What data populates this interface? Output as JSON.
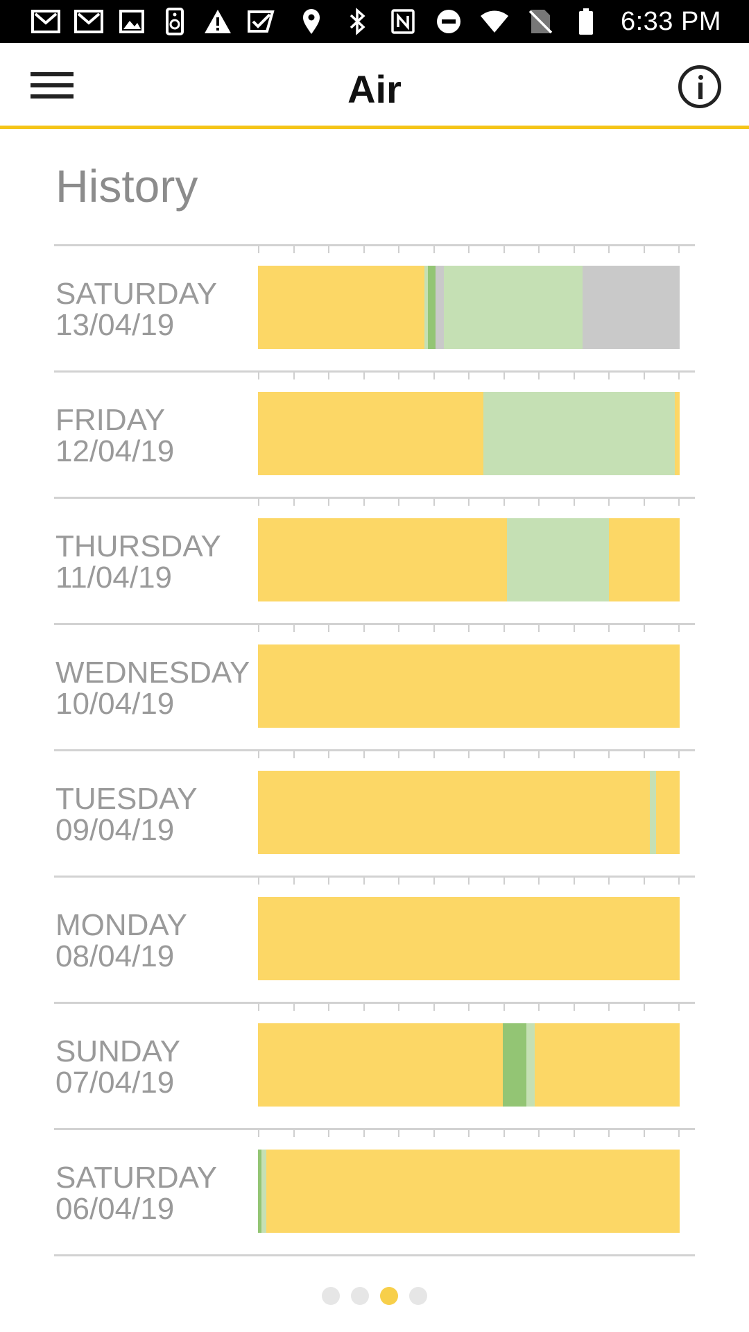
{
  "status_bar": {
    "time": "6:33 PM",
    "left_icons": [
      "gmail-icon",
      "gmail-icon",
      "image-icon",
      "speaker-icon",
      "warning-icon",
      "check-icon"
    ],
    "right_icons": [
      "location-icon",
      "bluetooth-icon",
      "nfc-icon",
      "do-not-disturb-icon",
      "wifi-icon",
      "no-sim-icon",
      "battery-icon"
    ]
  },
  "app_bar": {
    "title": "Air",
    "menu_icon": "hamburger-menu-icon",
    "info_icon": "info-icon"
  },
  "history": {
    "title": "History",
    "colors": {
      "yellow": "#FCD766",
      "light_green": "#C5E0B4",
      "green": "#93C574",
      "gray": "#C9C9C9",
      "grid": "#D2D2D2",
      "accent": "#F5C518"
    },
    "days": [
      {
        "day": "SATURDAY",
        "date": "13/04/19",
        "segments": [
          {
            "color": "yellow",
            "fraction": 0.395
          },
          {
            "color": "light_green",
            "fraction": 0.008
          },
          {
            "color": "green",
            "fraction": 0.018
          },
          {
            "color": "gray",
            "fraction": 0.019
          },
          {
            "color": "light_green",
            "fraction": 0.33
          },
          {
            "color": "gray",
            "fraction": 0.23
          }
        ]
      },
      {
        "day": "FRIDAY",
        "date": "12/04/19",
        "segments": [
          {
            "color": "yellow",
            "fraction": 0.535
          },
          {
            "color": "light_green",
            "fraction": 0.453
          },
          {
            "color": "yellow",
            "fraction": 0.012
          }
        ]
      },
      {
        "day": "THURSDAY",
        "date": "11/04/19",
        "segments": [
          {
            "color": "yellow",
            "fraction": 0.59
          },
          {
            "color": "light_green",
            "fraction": 0.242
          },
          {
            "color": "yellow",
            "fraction": 0.168
          }
        ]
      },
      {
        "day": "WEDNESDAY",
        "date": "10/04/19",
        "segments": [
          {
            "color": "yellow",
            "fraction": 1.0
          }
        ]
      },
      {
        "day": "TUESDAY",
        "date": "09/04/19",
        "segments": [
          {
            "color": "yellow",
            "fraction": 0.93
          },
          {
            "color": "light_green",
            "fraction": 0.014
          },
          {
            "color": "yellow",
            "fraction": 0.056
          }
        ]
      },
      {
        "day": "MONDAY",
        "date": "08/04/19",
        "segments": [
          {
            "color": "yellow",
            "fraction": 1.0
          }
        ]
      },
      {
        "day": "SUNDAY",
        "date": "07/04/19",
        "segments": [
          {
            "color": "yellow",
            "fraction": 0.58
          },
          {
            "color": "green",
            "fraction": 0.057
          },
          {
            "color": "light_green",
            "fraction": 0.02
          },
          {
            "color": "yellow",
            "fraction": 0.343
          }
        ]
      },
      {
        "day": "SATURDAY",
        "date": "06/04/19",
        "segments": [
          {
            "color": "green",
            "fraction": 0.008
          },
          {
            "color": "light_green",
            "fraction": 0.012
          },
          {
            "color": "yellow",
            "fraction": 0.98
          }
        ]
      }
    ]
  },
  "pager": {
    "count": 4,
    "active_index": 2
  }
}
